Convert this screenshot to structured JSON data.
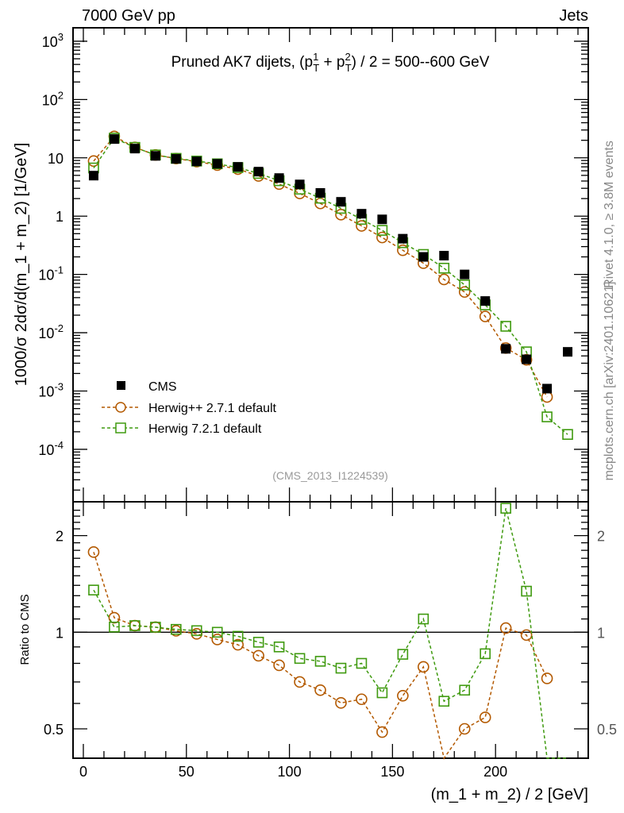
{
  "header": {
    "left": "7000 GeV pp",
    "right": "Jets"
  },
  "side_labels": {
    "rivet": "Rivet 4.1.0, ≥ 3.8M events",
    "mcplots": "mcplots.cern.ch [arXiv:2401.10621]"
  },
  "chart_data": [
    {
      "type": "scatter",
      "panel": "main",
      "title_main": "Pruned AK7 dijets, (p",
      "title_sub1": "T",
      "title_sup1": "1",
      "title_mid": " + p",
      "title_sub2": "T",
      "title_sup2": "2",
      "title_end": ") / 2 = 500--600 GeV",
      "analysis_id": "(CMS_2013_I1224539)",
      "ylabel": "1000/σ  2dσ/d(m_1 + m_2) [1/GeV]",
      "yscale": "log",
      "ylim": [
        1.26e-05,
        1700
      ],
      "xlim": [
        -5,
        245
      ],
      "ytick_labels": [
        {
          "exp": "3",
          "value": 1000
        },
        {
          "exp": "2",
          "value": 100
        },
        {
          "text": "10",
          "value": 10
        },
        {
          "text": "1",
          "value": 1
        },
        {
          "exp": "-1",
          "value": 0.1
        },
        {
          "exp": "-2",
          "value": 0.01
        },
        {
          "exp": "-3",
          "value": 0.001
        },
        {
          "exp": "-4",
          "value": 0.0001
        }
      ],
      "legend": {
        "placement": "bottom-left",
        "entries": [
          "CMS",
          "Herwig++ 2.7.1 default",
          "Herwig 7.2.1 default"
        ]
      },
      "x": [
        5,
        15,
        25,
        35,
        45,
        55,
        65,
        75,
        85,
        95,
        105,
        115,
        125,
        135,
        145,
        155,
        165,
        175,
        185,
        195,
        205,
        215,
        225,
        235
      ],
      "series": [
        {
          "name": "CMS",
          "color": "#000000",
          "marker": "filled-square",
          "values": [
            4.95,
            21,
            14.4,
            10.8,
            9.6,
            8.7,
            7.9,
            7.0,
            5.8,
            4.5,
            3.5,
            2.5,
            1.76,
            1.1,
            0.88,
            0.41,
            0.2,
            0.21,
            0.1,
            0.035,
            0.0053,
            0.0035,
            0.0011,
            0.0047
          ]
        },
        {
          "name": "Herwig++ 2.7.1 default",
          "color": "#b35900",
          "marker": "open-circle",
          "values": [
            8.8,
            23.3,
            15.1,
            11.2,
            9.7,
            8.6,
            7.5,
            6.4,
            4.9,
            3.55,
            2.45,
            1.65,
            1.06,
            0.68,
            0.43,
            0.26,
            0.156,
            0.082,
            0.05,
            0.019,
            0.00546,
            0.00343,
            0.00079,
            null
          ]
        },
        {
          "name": "Herwig 7.2.1 default",
          "color": "#3f9a0f",
          "marker": "open-square",
          "values": [
            6.7,
            21.8,
            15.1,
            11.2,
            9.8,
            8.8,
            7.9,
            6.8,
            5.4,
            4.05,
            2.9,
            2.03,
            1.36,
            0.88,
            0.57,
            0.35,
            0.22,
            0.128,
            0.066,
            0.03,
            0.0129,
            0.0047,
            0.00036,
            0.00018
          ]
        }
      ]
    },
    {
      "type": "line",
      "panel": "ratio",
      "ylabel": "Ratio to CMS",
      "xlabel": "(m_1 + m_2) / 2 [GeV]",
      "yscale": "log",
      "ylim": [
        0.405,
        2.55
      ],
      "xlim": [
        -5,
        245
      ],
      "ytick_labels": [
        {
          "text": "2",
          "value": 2
        },
        {
          "text": "1",
          "value": 1
        },
        {
          "text": "0.5",
          "value": 0.5
        }
      ],
      "xtick_labels": [
        {
          "text": "0",
          "value": 0
        },
        {
          "text": "50",
          "value": 50
        },
        {
          "text": "100",
          "value": 100
        },
        {
          "text": "150",
          "value": 150
        },
        {
          "text": "200",
          "value": 200
        }
      ],
      "reference_line": 1,
      "note": "ratio = series / CMS, computed from main panel values"
    }
  ]
}
